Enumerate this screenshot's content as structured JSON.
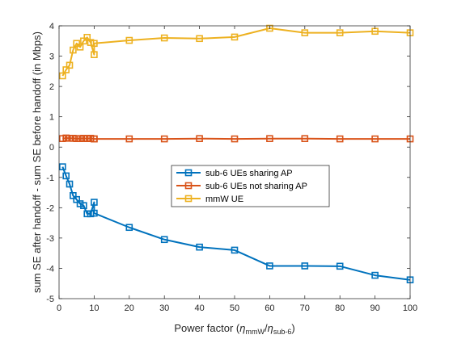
{
  "chart_data": {
    "type": "line",
    "xlabel": {
      "prefix": "Power factor (",
      "eta1": "η",
      "sub1": "mmW",
      "slash": "/",
      "eta2": "η",
      "sub2": "sub-6",
      "suffix": ")"
    },
    "ylabel": "sum SE after handoff - sum SE before handoff (in Mbps)",
    "xlim": [
      0,
      100
    ],
    "ylim": [
      -5,
      4
    ],
    "xticks": [
      "0",
      "10",
      "20",
      "30",
      "40",
      "50",
      "60",
      "70",
      "80",
      "90",
      "100"
    ],
    "yticks": [
      "4",
      "3",
      "2",
      "1",
      "0",
      "-1",
      "-2",
      "-3",
      "-4",
      "-5"
    ],
    "grid": false,
    "legend_position": "center",
    "x": [
      1,
      2,
      3,
      4,
      5,
      6,
      7,
      8,
      9,
      10,
      10,
      20,
      30,
      40,
      50,
      60,
      70,
      80,
      90,
      100
    ],
    "series": [
      {
        "name": "sub-6 UEs sharing AP",
        "color": "#0072BD",
        "values": [
          -0.65,
          -0.95,
          -1.22,
          -1.6,
          -1.73,
          -1.87,
          -1.93,
          -2.2,
          -2.2,
          -1.82,
          -2.18,
          -2.65,
          -3.05,
          -3.3,
          -3.4,
          -3.92,
          -3.92,
          -3.93,
          -4.23,
          -4.38
        ]
      },
      {
        "name": "sub-6 UEs not sharing AP",
        "color": "#D95319",
        "values": [
          0.28,
          0.3,
          0.29,
          0.29,
          0.28,
          0.28,
          0.29,
          0.28,
          0.29,
          0.27,
          0.27,
          0.27,
          0.27,
          0.28,
          0.27,
          0.28,
          0.28,
          0.27,
          0.27,
          0.27
        ]
      },
      {
        "name": "mmW UE",
        "color": "#EDB120",
        "values": [
          2.35,
          2.55,
          2.7,
          3.2,
          3.42,
          3.3,
          3.5,
          3.62,
          3.45,
          3.05,
          3.42,
          3.52,
          3.6,
          3.58,
          3.63,
          3.92,
          3.77,
          3.77,
          3.82,
          3.77
        ]
      }
    ]
  }
}
